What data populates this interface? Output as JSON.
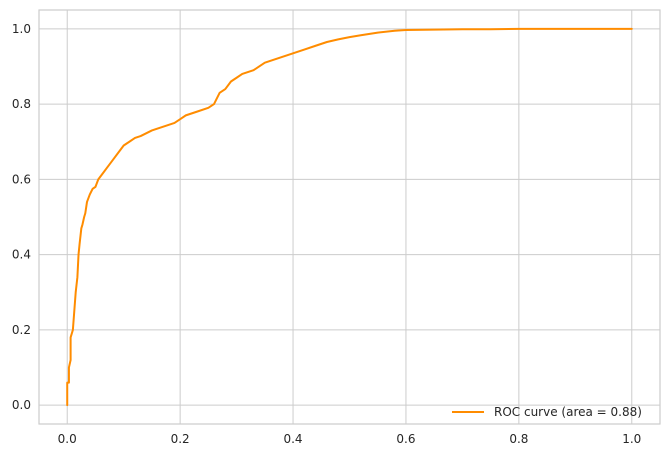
{
  "chart_data": {
    "type": "line",
    "title": "",
    "xlabel": "",
    "ylabel": "",
    "xlim": [
      -0.05,
      1.05
    ],
    "ylim": [
      -0.05,
      1.05
    ],
    "grid": true,
    "legend_position": "bottom-right",
    "xticks": [
      0.0,
      0.2,
      0.4,
      0.6,
      0.8,
      1.0
    ],
    "xtick_labels": [
      "0.0",
      "0.2",
      "0.4",
      "0.6",
      "0.8",
      "1.0"
    ],
    "yticks": [
      0.0,
      0.2,
      0.4,
      0.6,
      0.8,
      1.0
    ],
    "ytick_labels": [
      "0.0",
      "0.2",
      "0.4",
      "0.6",
      "0.8",
      "1.0"
    ],
    "colors": {
      "series": "#ff8c00",
      "grid": "#cccccc",
      "spine": "#cccccc",
      "text": "#262626",
      "background": "#ffffff"
    },
    "series": [
      {
        "name": "ROC curve (area = 0.88)",
        "x": [
          0.0,
          0.0,
          0.003,
          0.003,
          0.006,
          0.006,
          0.01,
          0.01,
          0.013,
          0.015,
          0.018,
          0.02,
          0.022,
          0.025,
          0.027,
          0.03,
          0.032,
          0.035,
          0.04,
          0.045,
          0.05,
          0.055,
          0.06,
          0.065,
          0.07,
          0.075,
          0.08,
          0.09,
          0.1,
          0.11,
          0.12,
          0.13,
          0.15,
          0.17,
          0.19,
          0.2,
          0.21,
          0.23,
          0.25,
          0.26,
          0.27,
          0.28,
          0.29,
          0.3,
          0.31,
          0.33,
          0.34,
          0.35,
          0.38,
          0.4,
          0.42,
          0.44,
          0.46,
          0.48,
          0.5,
          0.52,
          0.55,
          0.58,
          0.6,
          0.65,
          0.7,
          0.75,
          0.8,
          0.85,
          0.9,
          1.0
        ],
        "y": [
          0.0,
          0.06,
          0.06,
          0.1,
          0.12,
          0.18,
          0.2,
          0.2,
          0.26,
          0.3,
          0.34,
          0.4,
          0.43,
          0.47,
          0.48,
          0.5,
          0.51,
          0.54,
          0.56,
          0.575,
          0.58,
          0.6,
          0.61,
          0.62,
          0.63,
          0.64,
          0.65,
          0.67,
          0.69,
          0.7,
          0.71,
          0.715,
          0.73,
          0.74,
          0.75,
          0.76,
          0.77,
          0.78,
          0.79,
          0.8,
          0.83,
          0.84,
          0.86,
          0.87,
          0.88,
          0.89,
          0.9,
          0.91,
          0.925,
          0.935,
          0.945,
          0.955,
          0.965,
          0.972,
          0.978,
          0.983,
          0.99,
          0.995,
          0.997,
          0.998,
          0.999,
          0.999,
          1.0,
          1.0,
          1.0,
          1.0
        ]
      }
    ]
  }
}
